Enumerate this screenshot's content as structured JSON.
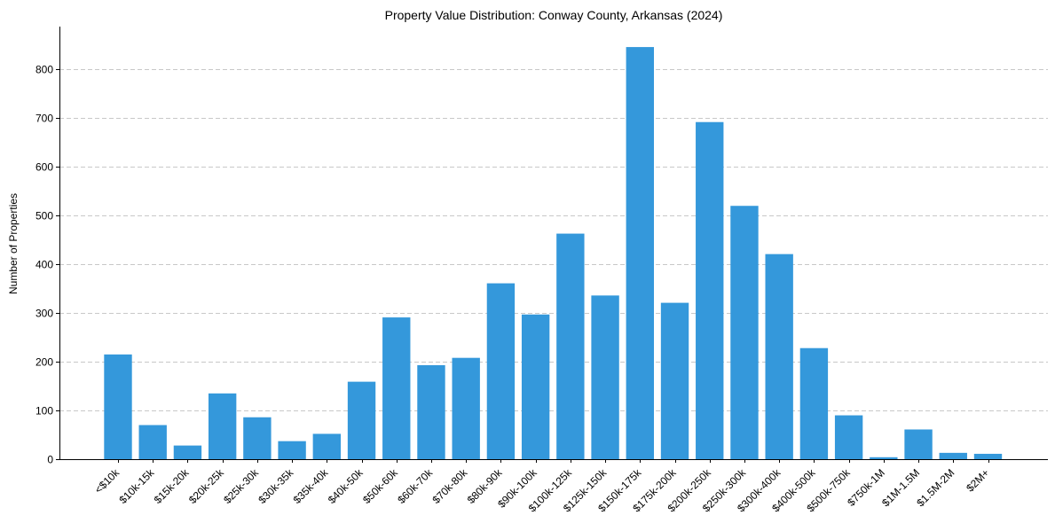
{
  "chart_data": {
    "type": "bar",
    "title": "Property Value Distribution: Conway County, Arkansas (2024)",
    "xlabel": "",
    "ylabel": "Number of Properties",
    "categories": [
      "<$10k",
      "$10k-15k",
      "$15k-20k",
      "$20k-25k",
      "$25k-30k",
      "$30k-35k",
      "$35k-40k",
      "$40k-50k",
      "$50k-60k",
      "$60k-70k",
      "$70k-80k",
      "$80k-90k",
      "$90k-100k",
      "$100k-125k",
      "$125k-150k",
      "$150k-175k",
      "$175k-200k",
      "$200k-250k",
      "$250k-300k",
      "$300k-400k",
      "$400k-500k",
      "$500k-750k",
      "$750k-1M",
      "$1M-1.5M",
      "$1.5M-2M",
      "$2M+"
    ],
    "values": [
      215,
      70,
      28,
      135,
      86,
      37,
      52,
      159,
      291,
      193,
      208,
      361,
      297,
      463,
      336,
      846,
      321,
      692,
      520,
      421,
      228,
      90,
      4,
      61,
      13,
      11
    ],
    "ylim": [
      0,
      888
    ],
    "yticks": [
      0,
      100,
      200,
      300,
      400,
      500,
      600,
      700,
      800
    ],
    "grid": "y-dashed",
    "bar_color": "#3498db",
    "axis_color": "#000000",
    "grid_color": "#c8c8c8"
  }
}
